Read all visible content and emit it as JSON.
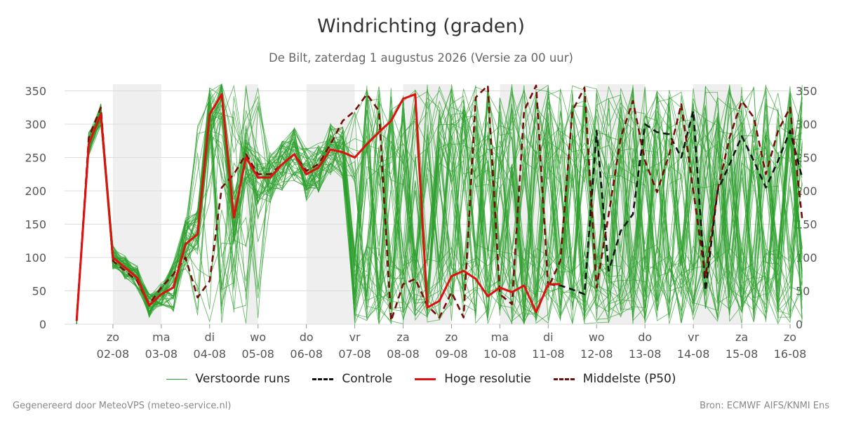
{
  "header": {
    "title": "Windrichting (graden)",
    "subtitle": "De Bilt, zaterdag  1 augustus 2026 (Versie za 00 uur)"
  },
  "footer": {
    "left": "Gegenereerd door MeteoVPS (meteo-service.nl)",
    "right": "Bron: ECMWF AIFS/KNMI Ens"
  },
  "legend": {
    "ensemble": "Verstoorde runs",
    "control": "Controle",
    "hires": "Hoge resolutie",
    "median": "Middelste (P50)"
  },
  "colors": {
    "ensemble": "#2ca02c",
    "control": "#111111",
    "hires": "#e01010",
    "median": "#7a0a0a",
    "weekend_band": "#efefef",
    "grid": "#dddddd"
  },
  "chart_data": {
    "type": "line",
    "title": "Windrichting (graden)",
    "x_unit": "day offset from 01-08 00:00",
    "xlim": [
      0,
      15
    ],
    "ylim": [
      0,
      360
    ],
    "y_ticks": [
      0,
      50,
      100,
      150,
      200,
      250,
      300,
      350
    ],
    "x_ticks": [
      {
        "x": 1,
        "day": "zo",
        "date": "02-08"
      },
      {
        "x": 2,
        "day": "ma",
        "date": "03-08"
      },
      {
        "x": 3,
        "day": "di",
        "date": "04-08"
      },
      {
        "x": 4,
        "day": "wo",
        "date": "05-08"
      },
      {
        "x": 5,
        "day": "do",
        "date": "06-08"
      },
      {
        "x": 6,
        "day": "vr",
        "date": "07-08"
      },
      {
        "x": 7,
        "day": "za",
        "date": "08-08"
      },
      {
        "x": 8,
        "day": "zo",
        "date": "09-08"
      },
      {
        "x": 9,
        "day": "ma",
        "date": "10-08"
      },
      {
        "x": 10,
        "day": "di",
        "date": "11-08"
      },
      {
        "x": 11,
        "day": "wo",
        "date": "12-08"
      },
      {
        "x": 12,
        "day": "do",
        "date": "13-08"
      },
      {
        "x": 13,
        "day": "vr",
        "date": "14-08"
      },
      {
        "x": 14,
        "day": "za",
        "date": "15-08"
      },
      {
        "x": 15,
        "day": "zo",
        "date": "16-08"
      }
    ],
    "shaded_bands": [
      [
        1,
        2
      ],
      [
        3.75,
        4
      ],
      [
        5,
        6
      ],
      [
        7,
        8
      ],
      [
        9,
        10
      ],
      [
        11,
        12
      ],
      [
        13,
        14
      ]
    ],
    "grid": true,
    "legend_position": "bottom",
    "series": [
      {
        "name": "Hoge resolutie",
        "style": "solid",
        "x": [
          0,
          0.25,
          0.5,
          0.75,
          1,
          1.25,
          1.5,
          1.75,
          2,
          2.25,
          2.5,
          2.75,
          3,
          3.25,
          3.5,
          3.75,
          4,
          4.25,
          4.5,
          4.75,
          5,
          5.25,
          5.5,
          5.75,
          6,
          6.25,
          6.5,
          6.75,
          7,
          7.25,
          7.5,
          7.75,
          8,
          8.25,
          8.5,
          8.75,
          9,
          9.25,
          9.5,
          9.75,
          10
        ],
        "y": [
          5,
          270,
          315,
          100,
          85,
          70,
          28,
          45,
          55,
          120,
          135,
          315,
          345,
          160,
          250,
          220,
          220,
          240,
          255,
          225,
          235,
          262,
          258,
          250,
          270,
          288,
          305,
          338,
          345,
          25,
          35,
          72,
          80,
          68,
          42,
          55,
          48,
          58,
          18,
          60,
          60
        ]
      },
      {
        "name": "Controle",
        "style": "dashed",
        "x": [
          0,
          0.25,
          0.5,
          0.75,
          1,
          1.25,
          1.5,
          1.75,
          2,
          2.25,
          2.5,
          2.75,
          3,
          3.25,
          3.5,
          3.75,
          4,
          4.25,
          4.5,
          4.75,
          5,
          5.25,
          5.5,
          5.75,
          6,
          6.25,
          6.5,
          6.75,
          7,
          7.25,
          7.5,
          7.75,
          8,
          8.25,
          8.5,
          8.75,
          9,
          9.25,
          9.5,
          9.75,
          10,
          10.25,
          10.5,
          10.75,
          11,
          11.25,
          11.5,
          11.75,
          12,
          12.25,
          12.5,
          12.75,
          13,
          13.25,
          13.5,
          13.75,
          14,
          14.25,
          14.5,
          14.75,
          15
        ],
        "y": [
          5,
          270,
          315,
          100,
          85,
          70,
          28,
          45,
          55,
          120,
          135,
          315,
          345,
          160,
          250,
          220,
          220,
          240,
          255,
          225,
          235,
          262,
          258,
          250,
          270,
          288,
          305,
          338,
          345,
          25,
          35,
          72,
          80,
          68,
          42,
          55,
          48,
          58,
          18,
          60,
          58,
          52,
          45,
          290,
          80,
          140,
          165,
          300,
          288,
          285,
          250,
          320,
          50,
          200,
          240,
          282,
          245,
          205,
          245,
          290,
          220
        ]
      },
      {
        "name": "Middelste (P50)",
        "style": "dashed",
        "x": [
          0,
          0.25,
          0.5,
          0.75,
          1,
          1.25,
          1.5,
          1.75,
          2,
          2.25,
          2.5,
          2.75,
          3,
          3.25,
          3.5,
          3.75,
          4,
          4.25,
          4.5,
          4.75,
          5,
          5.25,
          5.5,
          5.75,
          6,
          6.25,
          6.5,
          6.75,
          7,
          7.25,
          7.5,
          7.75,
          8,
          8.25,
          8.5,
          8.75,
          9,
          9.25,
          9.5,
          9.75,
          10,
          10.25,
          10.5,
          10.75,
          11,
          11.25,
          11.5,
          11.75,
          12,
          12.25,
          12.5,
          12.75,
          13,
          13.25,
          13.5,
          13.75,
          14,
          14.25,
          14.5,
          14.75,
          15
        ],
        "y": [
          5,
          280,
          325,
          95,
          80,
          65,
          30,
          55,
          75,
          100,
          40,
          65,
          205,
          225,
          255,
          225,
          225,
          240,
          255,
          230,
          240,
          270,
          305,
          320,
          345,
          320,
          5,
          60,
          68,
          28,
          10,
          48,
          10,
          340,
          358,
          45,
          30,
          320,
          358,
          55,
          95,
          320,
          355,
          55,
          165,
          280,
          335,
          245,
          198,
          255,
          330,
          200,
          70,
          200,
          280,
          335,
          310,
          225,
          290,
          325,
          158
        ]
      }
    ]
  }
}
